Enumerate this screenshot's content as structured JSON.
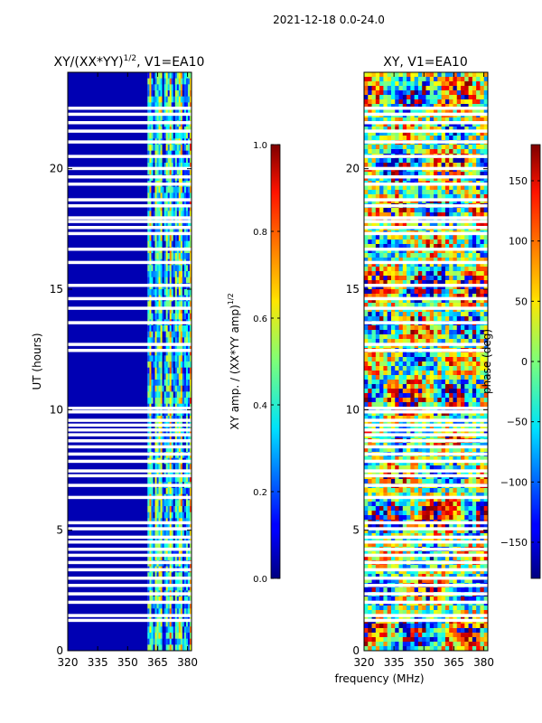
{
  "suptitle": "2021-12-18 0.0-24.0",
  "chart_data": [
    {
      "type": "heatmap",
      "title": "XY/(XX*YY)^1/2, V1=EA10",
      "title_main": "XY/(XX*YY)",
      "title_exp": "1/2",
      "title_rest": ", V1=EA10",
      "xlabel": "",
      "ylabel": "UT (hours)",
      "xlim": [
        320,
        382
      ],
      "ylim": [
        0,
        24
      ],
      "xticks": [
        320,
        335,
        350,
        365,
        380
      ],
      "yticks": [
        0,
        5,
        10,
        15,
        20
      ],
      "colorbar": {
        "label": "XY amp. / (XX*YY amp)^1/2",
        "label_main": "XY amp. / (XX*YY amp)",
        "label_exp": "1/2",
        "range": [
          0.0,
          1.0
        ],
        "ticks": [
          "0.0",
          "0.2",
          "0.4",
          "0.6",
          "0.8",
          "1.0"
        ],
        "tick_values": [
          0.0,
          0.2,
          0.4,
          0.6,
          0.8,
          1.0
        ]
      },
      "low_freq_region": {
        "freq_range": [
          320,
          360
        ],
        "typical_value": 0.05
      },
      "high_freq_region": {
        "freq_range": [
          360,
          382
        ],
        "typical_value": 0.5
      }
    },
    {
      "type": "heatmap",
      "title": "XY, V1=EA10",
      "xlabel": "frequency (MHz)",
      "ylabel": "",
      "xlim": [
        320,
        382
      ],
      "ylim": [
        0,
        24
      ],
      "xticks": [
        320,
        335,
        350,
        365,
        380
      ],
      "yticks": [
        0,
        5,
        10,
        15,
        20
      ],
      "colorbar": {
        "label": "phase (deg)",
        "range": [
          -180,
          180
        ],
        "ticks": [
          "150",
          "100",
          "50",
          "0",
          "−50",
          "−100",
          "−150"
        ],
        "tick_values": [
          150,
          100,
          50,
          0,
          -50,
          -100,
          -150
        ]
      }
    }
  ],
  "flagged_ut_hours": [
    1.25,
    1.45,
    2.0,
    2.35,
    2.7,
    3.0,
    3.35,
    3.65,
    3.95,
    4.2,
    4.5,
    4.7,
    5.05,
    5.3,
    6.35,
    6.85,
    7.25,
    7.45,
    7.85,
    8.15,
    8.45,
    8.7,
    8.95,
    9.15,
    9.35,
    9.55,
    9.9,
    10.05,
    12.45,
    12.7,
    13.6,
    14.2,
    14.6,
    15.15,
    16.1,
    16.65,
    17.3,
    17.55,
    17.8,
    17.95,
    18.45,
    18.7,
    19.35,
    19.65,
    20.0,
    20.5,
    21.1,
    21.55,
    21.9,
    22.25,
    22.5
  ]
}
